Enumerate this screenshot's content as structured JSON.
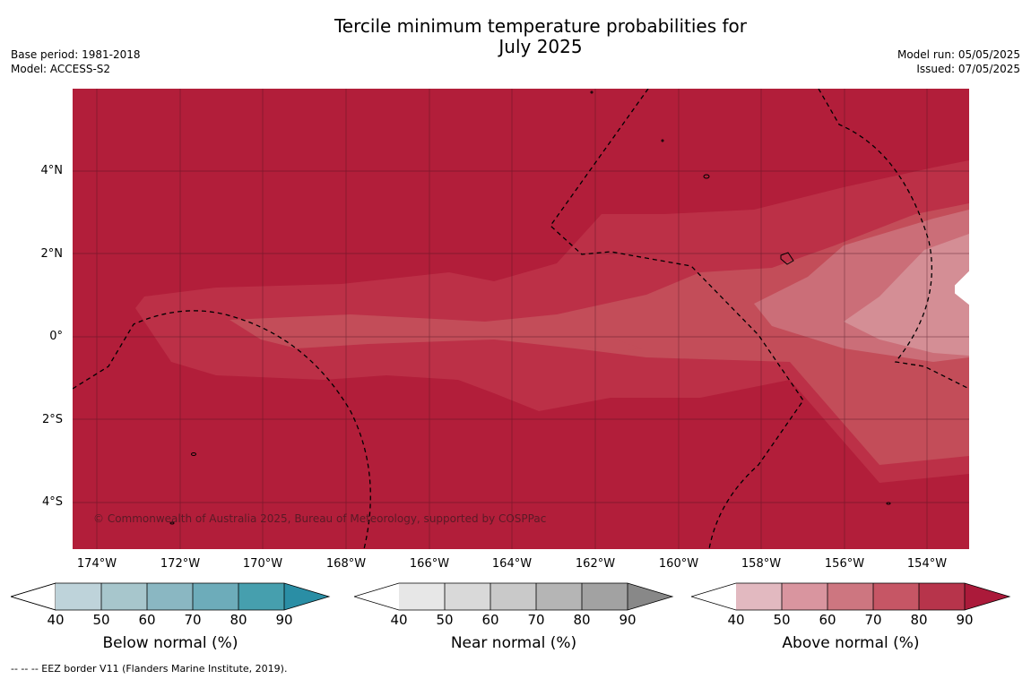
{
  "title_line1": "Tercile minimum temperature probabilities for",
  "title_line2": "July 2025",
  "meta_left": {
    "base_period": "Base period: 1981-2018",
    "model": "Model: ACCESS-S2"
  },
  "meta_right": {
    "model_run": "Model run: 05/05/2025",
    "issued": "Issued: 07/05/2025"
  },
  "map": {
    "lat_ticks": [
      "4°N",
      "2°N",
      "0°",
      "2°S",
      "4°S"
    ],
    "lon_ticks": [
      "174°W",
      "172°W",
      "170°W",
      "168°W",
      "166°W",
      "164°W",
      "162°W",
      "160°W",
      "158°W",
      "156°W",
      "154°W"
    ],
    "copyright": "© Commonwealth of Australia 2025, Bureau of Meteorology, supported by COSPPac",
    "colors": {
      "above_90": "#b21e3a",
      "above_80": "#bc3047",
      "above_70": "#c34d59",
      "above_60": "#cb6e78",
      "above_50": "#d48e95",
      "white": "#ffffff"
    }
  },
  "colorbars": [
    {
      "label": "Below normal (%)",
      "ticks": [
        "40",
        "50",
        "60",
        "70",
        "80",
        "90"
      ],
      "colors": [
        "#ffffff",
        "#bed3da",
        "#a7c6cc",
        "#8ab7c2",
        "#6dacba",
        "#469fae",
        "#2a8ea5"
      ]
    },
    {
      "label": "Near normal (%)",
      "ticks": [
        "40",
        "50",
        "60",
        "70",
        "80",
        "90"
      ],
      "colors": [
        "#ffffff",
        "#e7e7e7",
        "#d9d9d9",
        "#c9c9c9",
        "#b5b5b5",
        "#a2a2a2",
        "#888888"
      ]
    },
    {
      "label": "Above normal (%)",
      "ticks": [
        "40",
        "50",
        "60",
        "70",
        "80",
        "90"
      ],
      "colors": [
        "#ffffff",
        "#e2b9c0",
        "#d9959f",
        "#cd7680",
        "#c65665",
        "#b7344b",
        "#ab1a3a"
      ]
    }
  ],
  "footnote": "--  --  -- EEZ border V11 (Flanders Marine Institute, 2019)."
}
